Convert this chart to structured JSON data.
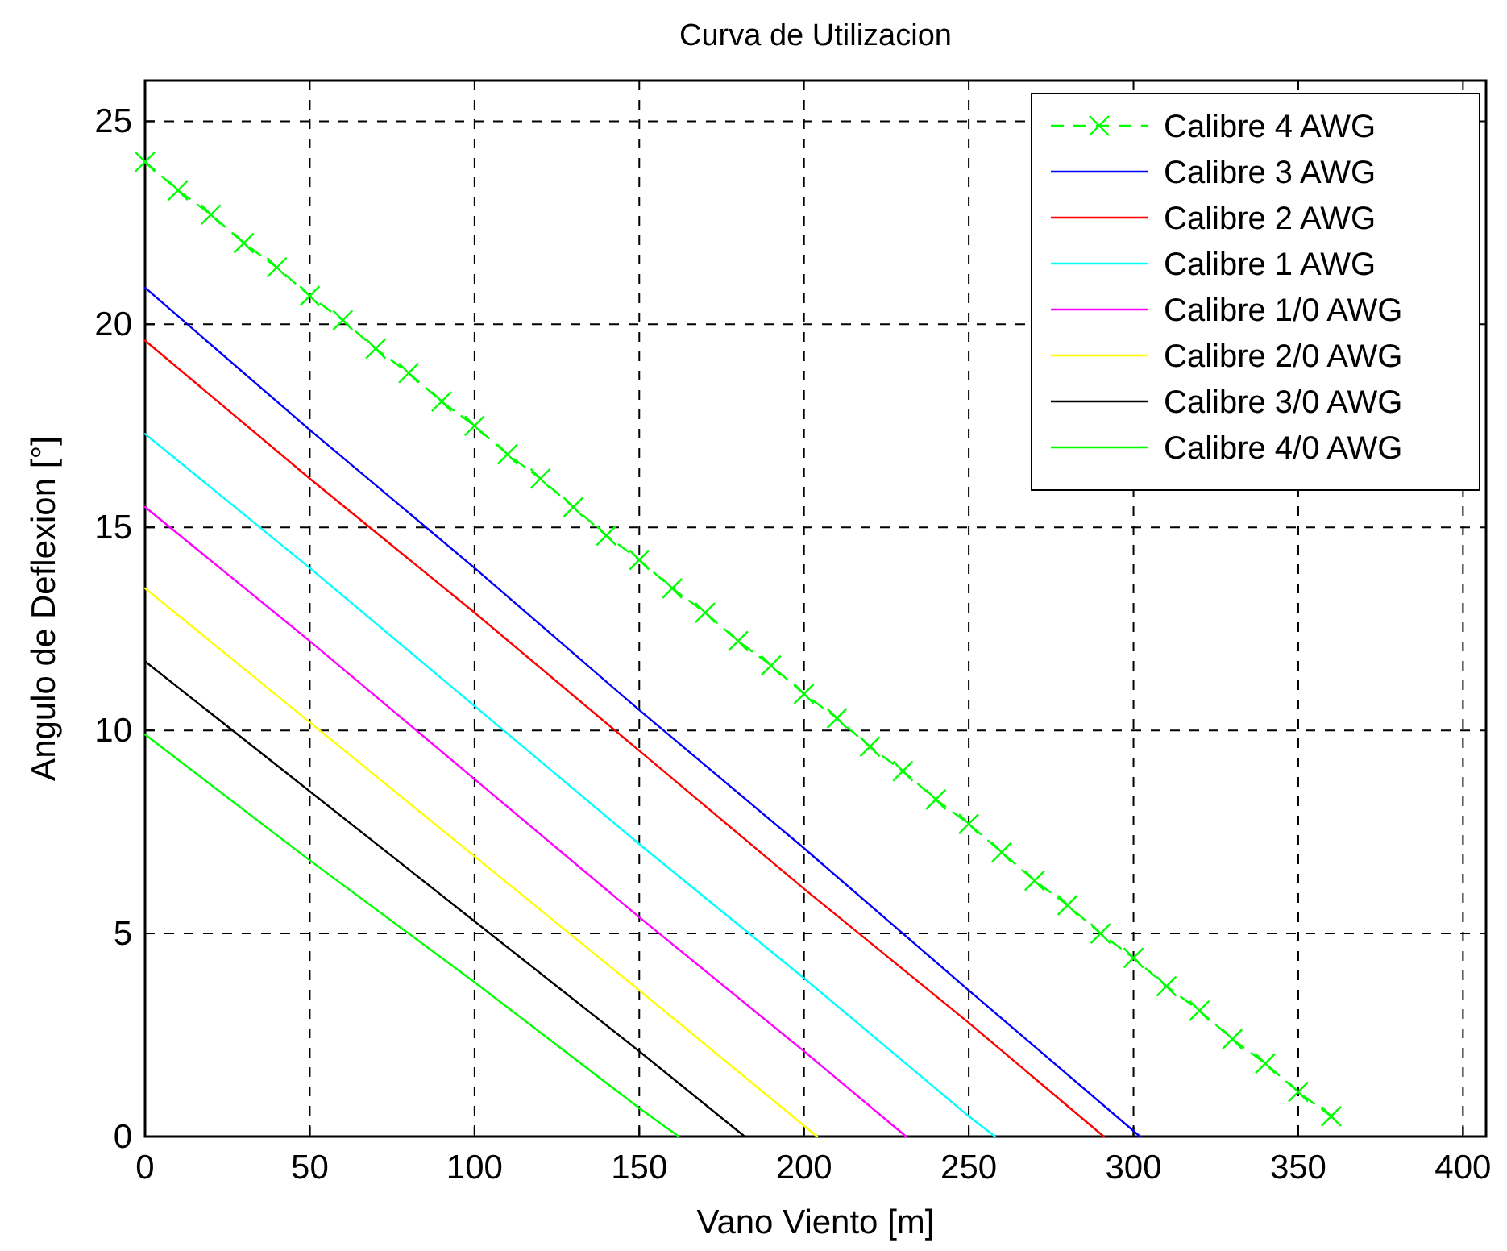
{
  "chart_data": {
    "type": "line",
    "title": "Curva de Utilizacion",
    "xlabel": "Vano Viento  [m]",
    "ylabel": "Angulo de Deflexion [°]",
    "xlim": [
      0,
      407
    ],
    "ylim": [
      0,
      26
    ],
    "xticks": [
      0,
      50,
      100,
      150,
      200,
      250,
      300,
      350,
      400
    ],
    "yticks": [
      0,
      5,
      10,
      15,
      20,
      25
    ],
    "grid": true,
    "legend": "top right",
    "line_style": "solid",
    "marker": "none",
    "series": [
      {
        "name": "Calibre 4 AWG",
        "color": "#00ff00",
        "line_style": "dashed",
        "marker": "cross",
        "x": [
          0,
          10,
          20,
          30,
          40,
          50,
          60,
          70,
          80,
          90,
          100,
          110,
          120,
          130,
          140,
          150,
          160,
          170,
          180,
          190,
          200,
          210,
          220,
          230,
          240,
          250,
          260,
          270,
          280,
          290,
          300,
          310,
          320,
          330,
          340,
          350,
          360
        ],
        "values": [
          24.0,
          23.3,
          22.7,
          22.0,
          21.4,
          20.7,
          20.1,
          19.4,
          18.8,
          18.1,
          17.5,
          16.8,
          16.2,
          15.5,
          14.8,
          14.2,
          13.5,
          12.9,
          12.2,
          11.6,
          10.9,
          10.3,
          9.6,
          9.0,
          8.3,
          7.7,
          7.0,
          6.3,
          5.7,
          5.0,
          4.4,
          3.7,
          3.1,
          2.4,
          1.8,
          1.1,
          0.5
        ]
      },
      {
        "name": "Calibre 3 AWG",
        "color": "#0000ff",
        "x": [
          0,
          50,
          100,
          150,
          200,
          250,
          302
        ],
        "values": [
          20.9,
          17.4,
          14.0,
          10.5,
          7.1,
          3.6,
          0
        ]
      },
      {
        "name": "Calibre 2 AWG",
        "color": "#ff0000",
        "x": [
          0,
          50,
          100,
          150,
          200,
          250,
          291
        ],
        "values": [
          19.6,
          16.2,
          12.9,
          9.5,
          6.1,
          2.8,
          0
        ]
      },
      {
        "name": "Calibre 1 AWG",
        "color": "#00ffff",
        "x": [
          0,
          50,
          100,
          150,
          200,
          250,
          258
        ],
        "values": [
          17.3,
          14.0,
          10.6,
          7.2,
          3.9,
          0.5,
          0
        ]
      },
      {
        "name": "Calibre 1/0 AWG",
        "color": "#ff00ff",
        "x": [
          0,
          50,
          100,
          150,
          200,
          231
        ],
        "values": [
          15.5,
          12.2,
          8.8,
          5.4,
          2.1,
          0
        ]
      },
      {
        "name": "Calibre 2/0 AWG",
        "color": "#ffff00",
        "x": [
          0,
          50,
          100,
          150,
          204
        ],
        "values": [
          13.5,
          10.2,
          6.9,
          3.6,
          0
        ]
      },
      {
        "name": "Calibre 3/0 AWG",
        "color": "#000000",
        "x": [
          0,
          50,
          100,
          150,
          182
        ],
        "values": [
          11.7,
          8.5,
          5.3,
          2.1,
          0
        ]
      },
      {
        "name": "Calibre 4/0 AWG",
        "color": "#00ff00",
        "x": [
          0,
          50,
          100,
          150,
          162
        ],
        "values": [
          9.9,
          6.8,
          3.8,
          0.7,
          0
        ]
      }
    ]
  }
}
